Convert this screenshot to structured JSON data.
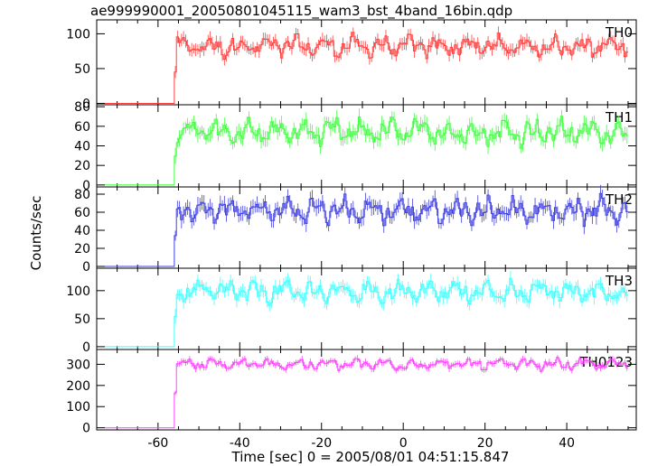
{
  "chart_data": {
    "type": "line",
    "title": "ae999990001_20050801045115_wam3_bst_4band_16bin.qdp",
    "xlabel": "Time [sec] 0 = 2005/08/01 04:51:15.847",
    "ylabel": "Counts/sec",
    "xlim": [
      -75,
      57
    ],
    "x_ticks": [
      "-60",
      "-40",
      "-20",
      "0",
      "20",
      "40"
    ],
    "x_tick_values": [
      -60,
      -40,
      -20,
      0,
      20,
      40
    ],
    "onset_time": -56,
    "data_end": 55,
    "panels": [
      {
        "label": "TH0",
        "color": "#ff4040",
        "ylim": [
          -2,
          120
        ],
        "yticks": [
          0,
          50,
          100
        ],
        "ytick_labels": [
          "0",
          "50",
          "100"
        ],
        "pre_level": 0,
        "post_level": 82,
        "amplitude": 13
      },
      {
        "label": "TH1",
        "color": "#40ff40",
        "ylim": [
          -2,
          82
        ],
        "yticks": [
          0,
          20,
          40,
          60,
          80
        ],
        "ytick_labels": [
          "0",
          "20",
          "40",
          "60",
          "80"
        ],
        "pre_level": 0,
        "post_level": 54,
        "amplitude": 11
      },
      {
        "label": "TH2",
        "color": "#4040e0",
        "ylim": [
          -2,
          88
        ],
        "yticks": [
          0,
          20,
          40,
          60,
          80
        ],
        "ytick_labels": [
          "0",
          "20",
          "40",
          "60",
          "80"
        ],
        "pre_level": 0,
        "post_level": 62,
        "amplitude": 12
      },
      {
        "label": "TH3",
        "color": "#40ffff",
        "ylim": [
          -5,
          140
        ],
        "yticks": [
          0,
          50,
          100
        ],
        "ytick_labels": [
          "0",
          "50",
          "100"
        ],
        "pre_level": 0,
        "post_level": 98,
        "amplitude": 17
      },
      {
        "label": "TH0123",
        "color": "#ff40ff",
        "ylim": [
          -10,
          370
        ],
        "yticks": [
          0,
          100,
          200,
          300
        ],
        "ytick_labels": [
          "0",
          "100",
          "200",
          "300"
        ],
        "pre_level": 0,
        "post_level": 300,
        "amplitude": 22
      }
    ]
  }
}
